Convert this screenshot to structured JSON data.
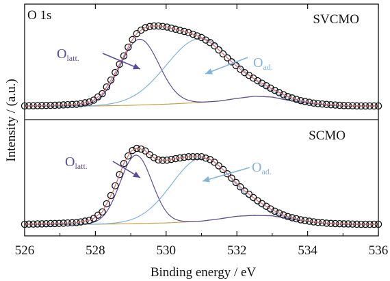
{
  "chart_data": [
    {
      "type": "line",
      "panel": "top",
      "panel_label": "O 1s",
      "sample_label": "SVCMO",
      "xlabel": "Binding energy / eV",
      "ylabel": "Intensity / (a.u.)",
      "xlim": [
        526,
        536
      ],
      "ylim": [
        0,
        1.0
      ],
      "reversed_x": false,
      "grid": false,
      "annotations": [
        {
          "text_main": "O",
          "text_sub": "latt.",
          "color": "#5a4ba0",
          "points_to": "lattice oxygen peak",
          "x": 529.2
        },
        {
          "text_main": "O",
          "text_sub": "ad.",
          "color": "#7fb3e0",
          "points_to": "adsorbed oxygen peak",
          "x": 531.0
        }
      ],
      "background": {
        "x": [
          526.0,
          528.0,
          529.0,
          530.0,
          531.0,
          531.5,
          532.0,
          532.5,
          533.0,
          533.5,
          534.0,
          534.5,
          535.0,
          536.0
        ],
        "y": [
          0.0,
          0.0,
          0.008,
          0.02,
          0.04,
          0.055,
          0.085,
          0.11,
          0.1,
          0.06,
          0.03,
          0.01,
          0.0,
          0.0
        ]
      },
      "series": [
        {
          "role": "lattice-component",
          "color": "#5a4ba0",
          "center": 529.25,
          "height": 0.74,
          "sigma": 0.55
        },
        {
          "role": "adsorbed-component",
          "color": "#7fb3e0",
          "center": 530.95,
          "height": 0.72,
          "sigma": 0.95
        },
        {
          "role": "experimental",
          "marker": "open-circle",
          "x": [
            526.0,
            526.5,
            527.0,
            527.5,
            527.9,
            528.2,
            528.5,
            528.8,
            529.0,
            529.2,
            529.4,
            529.6,
            529.8,
            530.0,
            530.3,
            530.6,
            531.0,
            531.3,
            531.6,
            531.9,
            532.2,
            532.6,
            533.0,
            533.4,
            533.8,
            534.2,
            534.6,
            535.0,
            535.5,
            536.0
          ],
          "y": [
            0.0,
            0.005,
            0.01,
            0.02,
            0.05,
            0.14,
            0.33,
            0.56,
            0.72,
            0.83,
            0.88,
            0.9,
            0.9,
            0.89,
            0.86,
            0.83,
            0.77,
            0.7,
            0.59,
            0.48,
            0.38,
            0.28,
            0.19,
            0.11,
            0.06,
            0.03,
            0.015,
            0.005,
            0.0,
            0.0
          ]
        },
        {
          "role": "envelope",
          "color": "#d06a6a"
        }
      ]
    },
    {
      "type": "line",
      "panel": "bottom",
      "sample_label": "SCMO",
      "xlim": [
        526,
        536
      ],
      "ylim": [
        0,
        1.0
      ],
      "annotations": [
        {
          "text_main": "O",
          "text_sub": "latt.",
          "color": "#5a4ba0",
          "points_to": "lattice oxygen peak",
          "x": 529.2
        },
        {
          "text_main": "O",
          "text_sub": "ad.",
          "color": "#7fb3e0",
          "points_to": "adsorbed oxygen peak",
          "x": 531.0
        }
      ],
      "background": {
        "x": [
          526.0,
          528.0,
          529.0,
          530.0,
          531.0,
          531.5,
          532.0,
          532.5,
          533.0,
          533.5,
          534.0,
          534.5,
          535.0,
          536.0
        ],
        "y": [
          0.0,
          0.0,
          0.006,
          0.015,
          0.035,
          0.06,
          0.09,
          0.1,
          0.095,
          0.06,
          0.03,
          0.01,
          0.0,
          0.0
        ]
      },
      "series": [
        {
          "role": "lattice-component",
          "color": "#5a4ba0",
          "center": 529.15,
          "height": 0.77,
          "sigma": 0.45
        },
        {
          "role": "adsorbed-component",
          "color": "#7fb3e0",
          "center": 531.0,
          "height": 0.71,
          "sigma": 0.85
        },
        {
          "role": "experimental",
          "marker": "open-circle",
          "x": [
            526.0,
            526.5,
            527.0,
            527.5,
            527.9,
            528.2,
            528.5,
            528.8,
            529.0,
            529.2,
            529.4,
            529.6,
            529.8,
            530.0,
            530.3,
            530.6,
            531.0,
            531.3,
            531.6,
            531.9,
            532.2,
            532.6,
            533.0,
            533.4,
            533.8,
            534.2,
            534.6,
            535.0,
            535.5,
            536.0
          ],
          "y": [
            0.0,
            0.005,
            0.01,
            0.02,
            0.05,
            0.14,
            0.37,
            0.68,
            0.82,
            0.86,
            0.83,
            0.76,
            0.72,
            0.72,
            0.74,
            0.76,
            0.76,
            0.72,
            0.62,
            0.5,
            0.38,
            0.26,
            0.16,
            0.09,
            0.05,
            0.025,
            0.01,
            0.005,
            0.0,
            0.0
          ]
        },
        {
          "role": "envelope",
          "color": "#d06a6a"
        }
      ]
    }
  ],
  "xticks": [
    526,
    528,
    530,
    532,
    534,
    536
  ]
}
